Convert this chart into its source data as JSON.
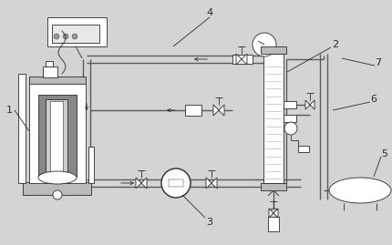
{
  "bg_color": "#d4d4d4",
  "line_color": "#2a2a2a",
  "pipe_color": "#5a5a5a",
  "fill_white": "#ffffff",
  "fill_light": "#e8e8e8",
  "fill_dark": "#888888",
  "fill_mid": "#bbbbbb"
}
